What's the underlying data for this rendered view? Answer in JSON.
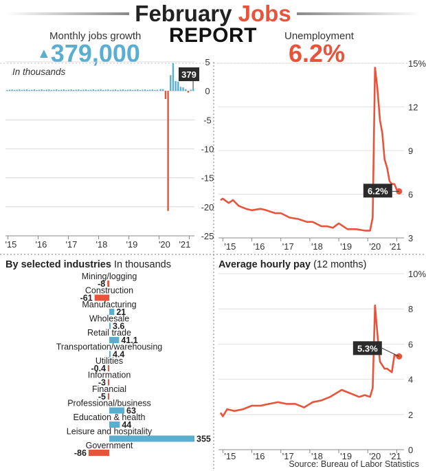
{
  "header": {
    "title_part1": "February ",
    "title_accent": "Jobs",
    "title_line2": "REPORT",
    "accent_color": "#e8533a",
    "blue_color": "#5aaed0"
  },
  "jobs_panel": {
    "label": "Monthly jobs growth",
    "arrow": "▲",
    "value": "379,000",
    "note": "In thousands",
    "callout": "379"
  },
  "unemployment_panel": {
    "label": "Unemployment",
    "value": "6.2%",
    "callout": "6.2%"
  },
  "industries_panel": {
    "label_bold": "By selected industries",
    "label_light": "In thousands"
  },
  "pay_panel": {
    "label_bold": "Average hourly pay",
    "label_light": "(12 months)",
    "callout": "5.3%"
  },
  "source": "Source: Bureau of Labor Statistics",
  "chart_data": [
    {
      "id": "monthly_jobs",
      "type": "bar",
      "title": "Monthly jobs growth",
      "unit_note": "In thousands",
      "y_axis_scale": "thousands of jobs (tick labels shown in thousands of thousands)",
      "ylim": [
        -25,
        5
      ],
      "yticks": [
        5,
        0,
        -5,
        -10,
        -15,
        -20,
        -25
      ],
      "xticks": [
        "'15",
        "'16",
        "'17",
        "'18",
        "'19",
        "'20",
        "'21"
      ],
      "annotation": "379",
      "series_months": {
        "pre_2020": "~72 months of small positive values (≈ 0.1 to 0.4)",
        "2020_2021": [
          {
            "month": "Jan 2020",
            "value": 0.3
          },
          {
            "month": "Feb 2020",
            "value": 0.3
          },
          {
            "month": "Mar 2020",
            "value": -1.4
          },
          {
            "month": "Apr 2020",
            "value": -20.7
          },
          {
            "month": "May 2020",
            "value": 2.7
          },
          {
            "month": "Jun 2020",
            "value": 4.8
          },
          {
            "month": "Jul 2020",
            "value": 1.7
          },
          {
            "month": "Aug 2020",
            "value": 1.6
          },
          {
            "month": "Sep 2020",
            "value": 0.7
          },
          {
            "month": "Oct 2020",
            "value": 0.6
          },
          {
            "month": "Nov 2020",
            "value": 0.3
          },
          {
            "month": "Dec 2020",
            "value": -0.3
          },
          {
            "month": "Jan 2021",
            "value": 0.2
          },
          {
            "month": "Feb 2021",
            "value": 0.4
          }
        ]
      }
    },
    {
      "id": "unemployment",
      "type": "line",
      "title": "Unemployment",
      "ylim": [
        3,
        15
      ],
      "yticks": [
        "15%",
        "12",
        "9",
        "6",
        "3"
      ],
      "xticks": [
        "'15",
        "'16",
        "'17",
        "'18",
        "'19",
        "'20",
        "'21"
      ],
      "annotation": "6.2%",
      "points": [
        {
          "t": 2014.92,
          "y": 5.6
        },
        {
          "t": 2015.0,
          "y": 5.7
        },
        {
          "t": 2015.2,
          "y": 5.4
        },
        {
          "t": 2015.35,
          "y": 5.6
        },
        {
          "t": 2015.55,
          "y": 5.2
        },
        {
          "t": 2015.8,
          "y": 5.0
        },
        {
          "t": 2016.0,
          "y": 4.9
        },
        {
          "t": 2016.3,
          "y": 5.0
        },
        {
          "t": 2016.5,
          "y": 4.9
        },
        {
          "t": 2016.8,
          "y": 4.7
        },
        {
          "t": 2017.0,
          "y": 4.7
        },
        {
          "t": 2017.3,
          "y": 4.4
        },
        {
          "t": 2017.6,
          "y": 4.3
        },
        {
          "t": 2017.9,
          "y": 4.1
        },
        {
          "t": 2018.1,
          "y": 4.1
        },
        {
          "t": 2018.4,
          "y": 3.8
        },
        {
          "t": 2018.6,
          "y": 3.8
        },
        {
          "t": 2018.8,
          "y": 3.7
        },
        {
          "t": 2019.0,
          "y": 4.0
        },
        {
          "t": 2019.3,
          "y": 3.6
        },
        {
          "t": 2019.6,
          "y": 3.6
        },
        {
          "t": 2019.9,
          "y": 3.5
        },
        {
          "t": 2020.08,
          "y": 3.5
        },
        {
          "t": 2020.17,
          "y": 4.4
        },
        {
          "t": 2020.25,
          "y": 14.7
        },
        {
          "t": 2020.33,
          "y": 13.3
        },
        {
          "t": 2020.42,
          "y": 11.1
        },
        {
          "t": 2020.5,
          "y": 10.2
        },
        {
          "t": 2020.58,
          "y": 8.4
        },
        {
          "t": 2020.67,
          "y": 7.8
        },
        {
          "t": 2020.75,
          "y": 6.9
        },
        {
          "t": 2020.83,
          "y": 6.7
        },
        {
          "t": 2020.92,
          "y": 6.7
        },
        {
          "t": 2021.0,
          "y": 6.3
        },
        {
          "t": 2021.08,
          "y": 6.2
        }
      ]
    },
    {
      "id": "industries",
      "type": "bar",
      "orientation": "horizontal",
      "title": "By selected industries",
      "unit_note": "In thousands",
      "categories": [
        "Mining/logging",
        "Construction",
        "Manufacturing",
        "Wholesale",
        "Retail trade",
        "Transportation/warehousing",
        "Utilities",
        "Information",
        "Financial",
        "Professional/business",
        "Education & health",
        "Leisure and hospitality",
        "Government"
      ],
      "values": [
        -8,
        -61,
        21,
        3.6,
        41.1,
        4.4,
        -0.4,
        -3,
        -5,
        63,
        44,
        355,
        -86
      ],
      "labels": [
        "-8",
        "-61",
        "21",
        "3.6",
        "41.1",
        "4.4",
        "-0.4",
        "-3",
        "-5",
        "63",
        "44",
        "355",
        "-86"
      ]
    },
    {
      "id": "average_hourly_pay",
      "type": "line",
      "title": "Average hourly pay",
      "subtitle": "(12 months)",
      "ylim": [
        0,
        10
      ],
      "yticks": [
        "10%",
        "8",
        "6",
        "4",
        "2",
        "0"
      ],
      "xticks": [
        "'15",
        "'16",
        "'17",
        "'18",
        "'19",
        "'20",
        "'21"
      ],
      "annotation": "5.3%",
      "points": [
        {
          "t": 2014.92,
          "y": 2.1
        },
        {
          "t": 2015.0,
          "y": 1.9
        },
        {
          "t": 2015.15,
          "y": 2.3
        },
        {
          "t": 2015.4,
          "y": 2.2
        },
        {
          "t": 2015.7,
          "y": 2.3
        },
        {
          "t": 2016.0,
          "y": 2.5
        },
        {
          "t": 2016.3,
          "y": 2.5
        },
        {
          "t": 2016.6,
          "y": 2.6
        },
        {
          "t": 2016.9,
          "y": 2.7
        },
        {
          "t": 2017.2,
          "y": 2.6
        },
        {
          "t": 2017.5,
          "y": 2.6
        },
        {
          "t": 2017.8,
          "y": 2.4
        },
        {
          "t": 2018.1,
          "y": 2.7
        },
        {
          "t": 2018.4,
          "y": 2.8
        },
        {
          "t": 2018.7,
          "y": 3.0
        },
        {
          "t": 2018.9,
          "y": 3.2
        },
        {
          "t": 2019.1,
          "y": 3.4
        },
        {
          "t": 2019.4,
          "y": 3.2
        },
        {
          "t": 2019.7,
          "y": 3.0
        },
        {
          "t": 2019.9,
          "y": 3.1
        },
        {
          "t": 2020.08,
          "y": 3.0
        },
        {
          "t": 2020.17,
          "y": 3.5
        },
        {
          "t": 2020.25,
          "y": 8.2
        },
        {
          "t": 2020.33,
          "y": 6.6
        },
        {
          "t": 2020.42,
          "y": 5.0
        },
        {
          "t": 2020.5,
          "y": 4.8
        },
        {
          "t": 2020.58,
          "y": 4.6
        },
        {
          "t": 2020.67,
          "y": 4.6
        },
        {
          "t": 2020.75,
          "y": 4.5
        },
        {
          "t": 2020.83,
          "y": 4.4
        },
        {
          "t": 2020.92,
          "y": 5.4
        },
        {
          "t": 2021.0,
          "y": 5.3
        },
        {
          "t": 2021.08,
          "y": 5.3
        }
      ]
    }
  ]
}
